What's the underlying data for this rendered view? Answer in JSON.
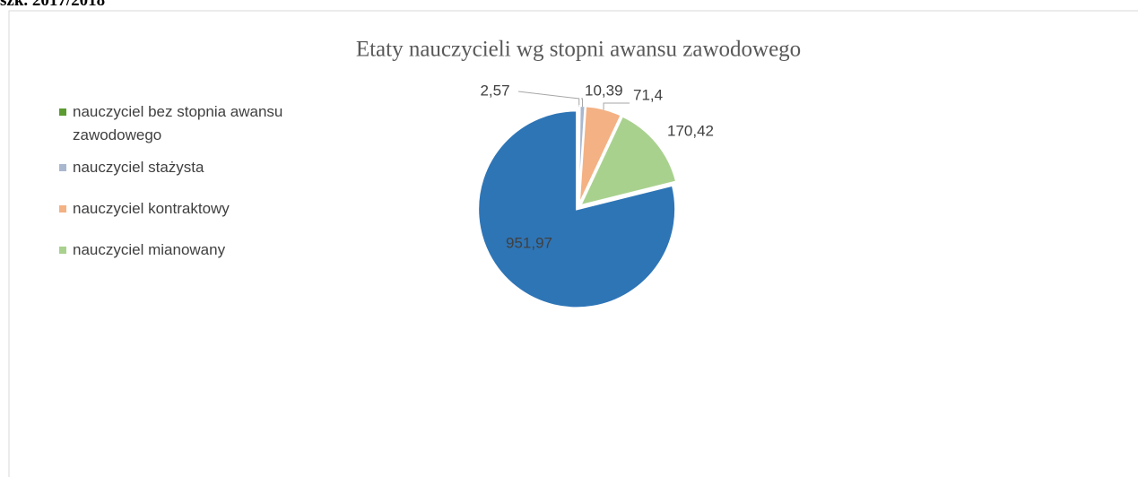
{
  "heading": "szk. 2017/2018",
  "chart_data": {
    "type": "pie",
    "title": "Etaty nauczycieli wg stopni awansu zawodowego",
    "categories": [
      "nauczyciel bez stopnia awansu zawodowego",
      "nauczyciel stażysta",
      "nauczyciel kontraktowy",
      "nauczyciel mianowany",
      null
    ],
    "values": [
      2.57,
      10.39,
      71.4,
      170.42,
      951.97
    ],
    "value_labels": [
      "2,57",
      "10,39",
      "71,4",
      "170,42",
      "951,97"
    ],
    "colors": [
      "#5b9b2f",
      "#a9b8cf",
      "#f4b183",
      "#a9d18e",
      "#2e75b6"
    ],
    "legend": "left"
  }
}
